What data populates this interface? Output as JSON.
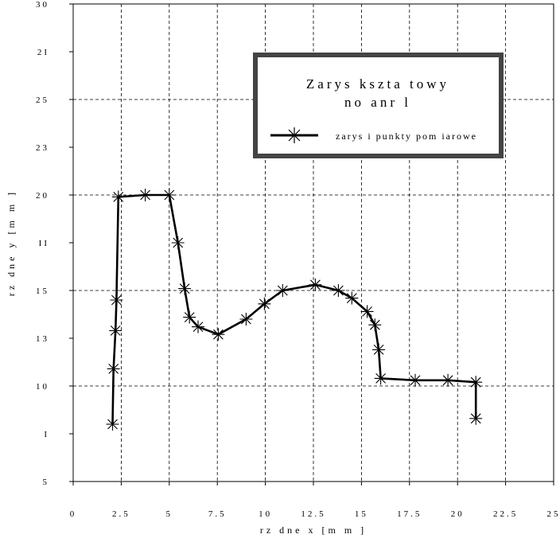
{
  "chart_data": {
    "type": "line",
    "xlim": [
      0,
      25
    ],
    "ylim": [
      5,
      30
    ],
    "grid": true,
    "grid_style": "dashed",
    "xlabel": "rz dne x [m m ]",
    "ylabel": "rz dne y [m m ]",
    "x_tick_labels": [
      "0",
      "2.5",
      "5",
      "7.5",
      "10",
      "12.5",
      "15",
      "17.5",
      "20",
      "22.5",
      "25"
    ],
    "y_tick_labels": [
      "5",
      "I",
      "10",
      "13",
      "15",
      "II",
      "20",
      "23",
      "25",
      "2I",
      "30"
    ],
    "legend": {
      "title_line1": "Zarys kszta towy",
      "title_line2": "no anr l",
      "entry": "zarys i punkty pom iarowe",
      "placement": "top-right"
    },
    "series": [
      {
        "name": "zarys i punkty pom iarowe",
        "marker": "asterisk",
        "color": "#000000",
        "x": [
          2.05,
          2.1,
          2.2,
          2.25,
          2.35,
          3.75,
          5.0,
          5.45,
          5.8,
          6.05,
          6.5,
          7.55,
          9.0,
          9.95,
          10.9,
          12.6,
          13.8,
          14.5,
          15.3,
          15.7,
          15.9,
          16.0,
          17.8,
          19.5,
          20.95,
          20.95
        ],
        "y": [
          8.0,
          10.9,
          12.9,
          14.5,
          19.9,
          20.0,
          20.0,
          17.5,
          15.1,
          13.6,
          13.1,
          12.7,
          13.5,
          14.3,
          15.0,
          15.3,
          15.0,
          14.6,
          13.9,
          13.2,
          11.9,
          10.4,
          10.3,
          10.3,
          10.2,
          8.3
        ]
      }
    ]
  }
}
